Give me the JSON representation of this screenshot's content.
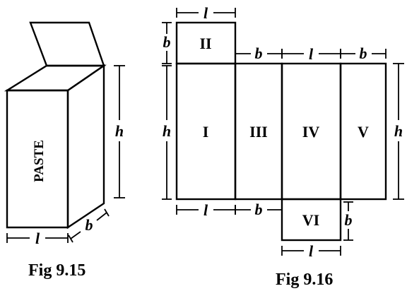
{
  "fig1": {
    "caption": "Fig 9.15",
    "paste_label": "PASTE"
  },
  "fig2": {
    "caption": "Fig 9.16",
    "faces": {
      "one": "I",
      "two": "II",
      "three": "III",
      "four": "IV",
      "five": "V",
      "six": "VI"
    }
  },
  "dims": {
    "l": "l",
    "b": "b",
    "h": "h"
  }
}
